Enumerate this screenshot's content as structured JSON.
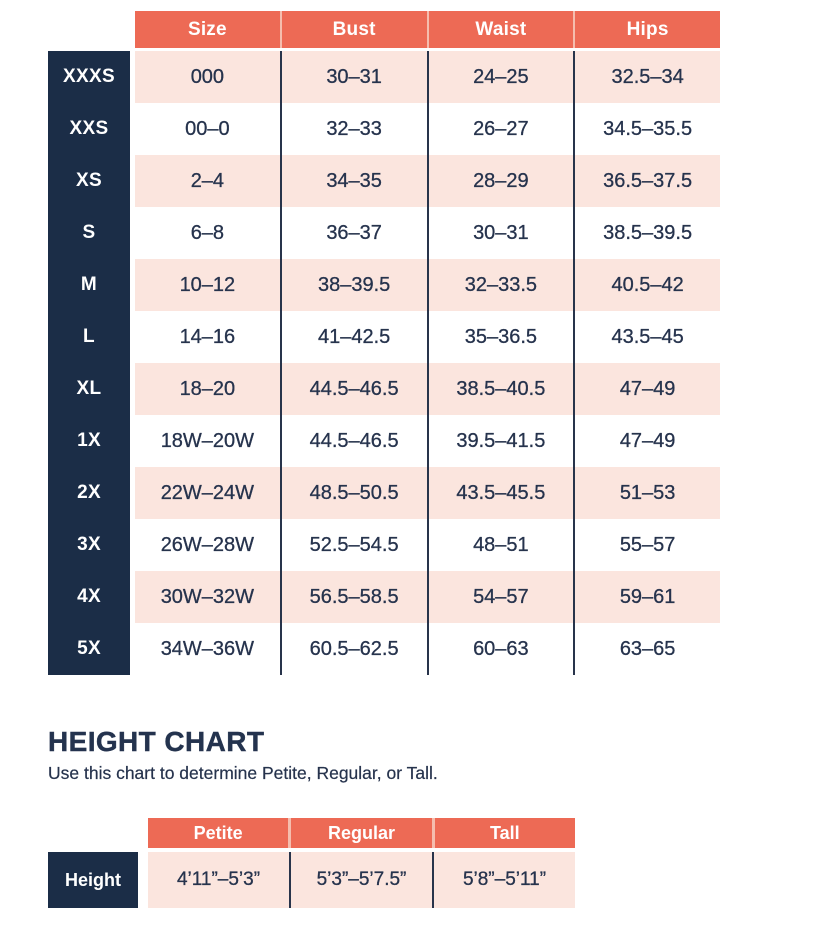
{
  "colors": {
    "coral": "#ED6A55",
    "navy": "#1B2D47",
    "pink_row": "#FBE5DE",
    "white_row": "#FFFFFF",
    "divider_dark": "#28344B",
    "header_separator_light": "#F5BDAE",
    "text_dark": "#26334D"
  },
  "size_chart": {
    "columns": [
      "Size",
      "Bust",
      "Waist",
      "Hips"
    ],
    "rows": [
      {
        "label": "XXXS",
        "size": "000",
        "bust": "30–31",
        "waist": "24–25",
        "hips": "32.5–34"
      },
      {
        "label": "XXS",
        "size": "00–0",
        "bust": "32–33",
        "waist": "26–27",
        "hips": "34.5–35.5"
      },
      {
        "label": "XS",
        "size": "2–4",
        "bust": "34–35",
        "waist": "28–29",
        "hips": "36.5–37.5"
      },
      {
        "label": "S",
        "size": "6–8",
        "bust": "36–37",
        "waist": "30–31",
        "hips": "38.5–39.5"
      },
      {
        "label": "M",
        "size": "10–12",
        "bust": "38–39.5",
        "waist": "32–33.5",
        "hips": "40.5–42"
      },
      {
        "label": "L",
        "size": "14–16",
        "bust": "41–42.5",
        "waist": "35–36.5",
        "hips": "43.5–45"
      },
      {
        "label": "XL",
        "size": "18–20",
        "bust": "44.5–46.5",
        "waist": "38.5–40.5",
        "hips": "47–49"
      },
      {
        "label": "1X",
        "size": "18W–20W",
        "bust": "44.5–46.5",
        "waist": "39.5–41.5",
        "hips": "47–49"
      },
      {
        "label": "2X",
        "size": "22W–24W",
        "bust": "48.5–50.5",
        "waist": "43.5–45.5",
        "hips": "51–53"
      },
      {
        "label": "3X",
        "size": "26W–28W",
        "bust": "52.5–54.5",
        "waist": "48–51",
        "hips": "55–57"
      },
      {
        "label": "4X",
        "size": "30W–32W",
        "bust": "56.5–58.5",
        "waist": "54–57",
        "hips": "59–61"
      },
      {
        "label": "5X",
        "size": "34W–36W",
        "bust": "60.5–62.5",
        "waist": "60–63",
        "hips": "63–65"
      }
    ]
  },
  "height_chart": {
    "title": "HEIGHT CHART",
    "subtitle": "Use this chart to determine Petite, Regular, or Tall.",
    "columns": [
      "Petite",
      "Regular",
      "Tall"
    ],
    "row_label": "Height",
    "values": [
      "4’11”–5’3”",
      "5’3”–5’7.5”",
      "5’8”–5’11”"
    ]
  }
}
